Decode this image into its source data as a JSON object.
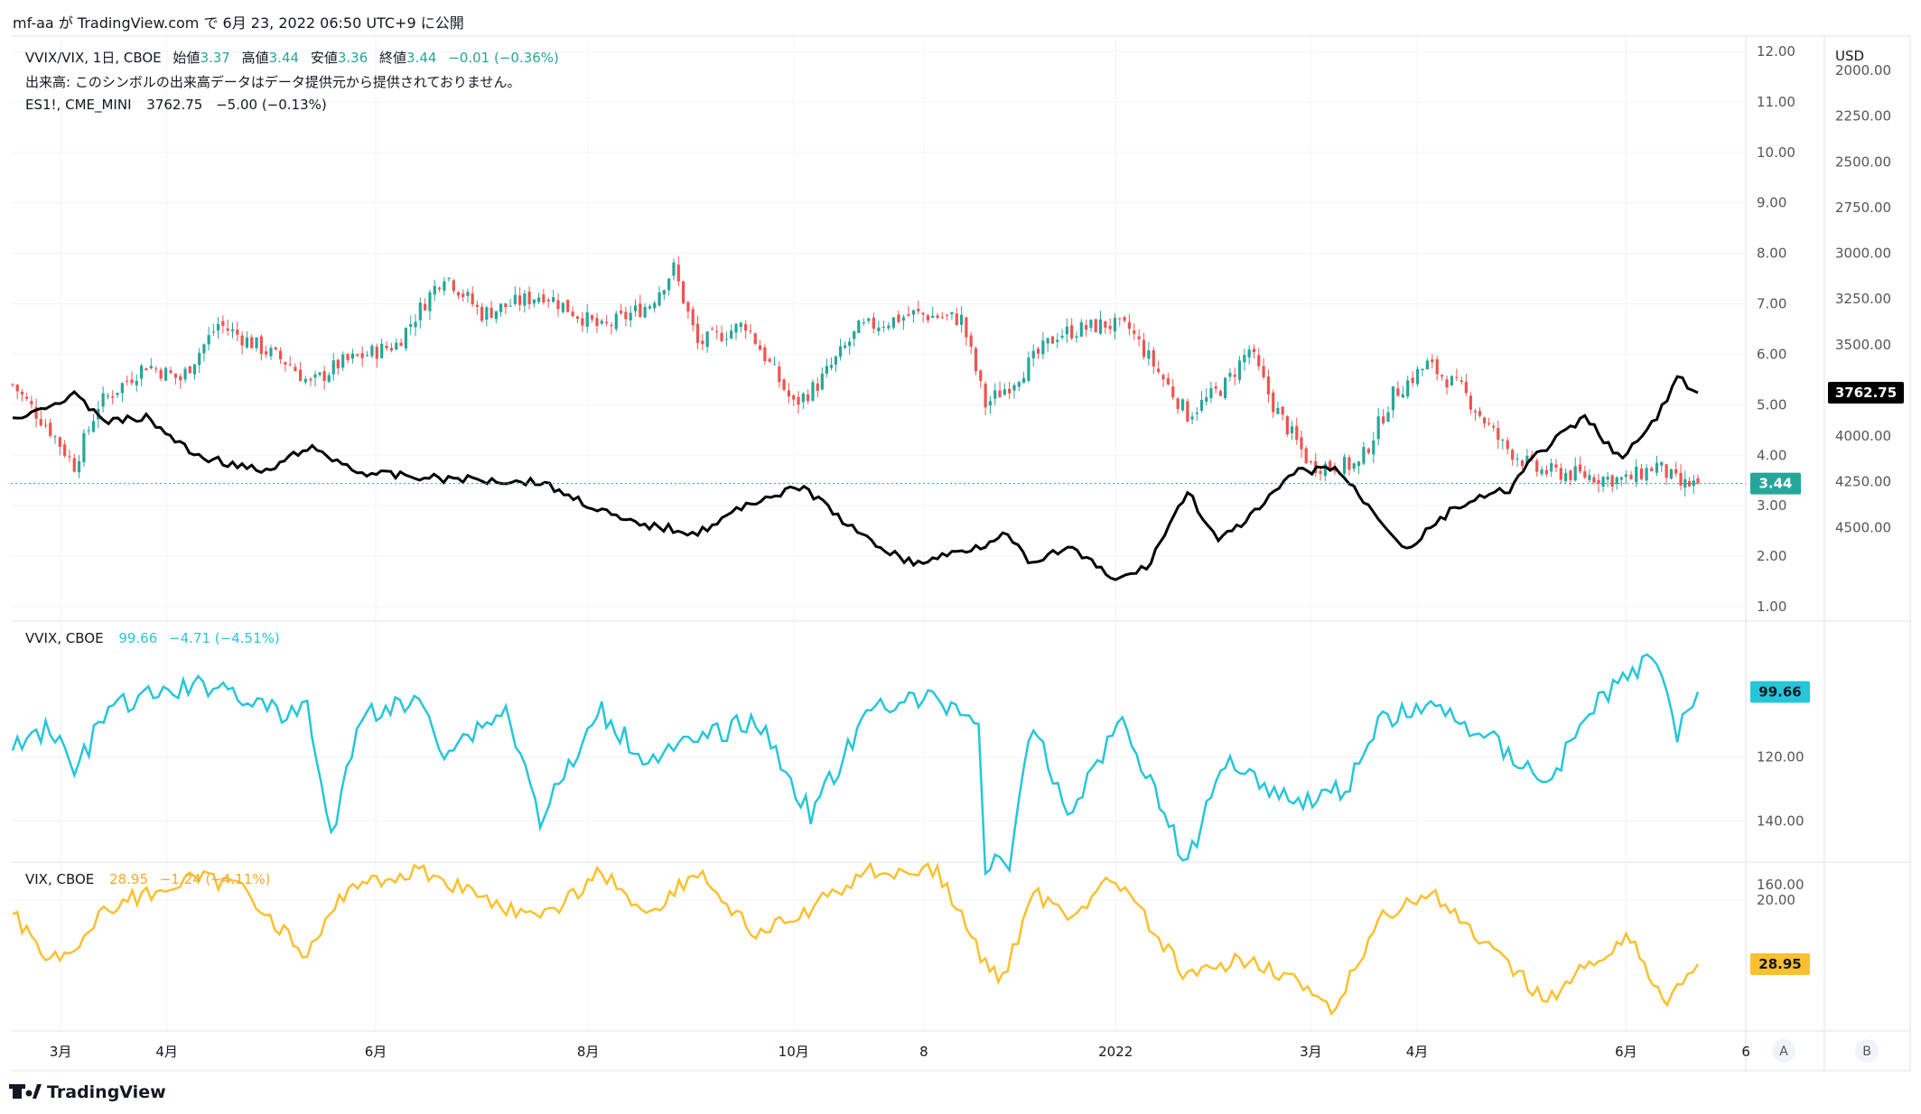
{
  "header": {
    "published": "mf-aa が TradingView.com で 6月 23, 2022 06:50 UTC+9 に公開"
  },
  "footer": {
    "brand": "TradingView"
  },
  "panes": {
    "main": {
      "symbol_line": "VVIX/VIX, 1日, CBOE",
      "o_label": "始値",
      "o": "3.37",
      "h_label": "高値",
      "h": "3.44",
      "l_label": "安値",
      "l": "3.36",
      "c_label": "終値",
      "c": "3.44",
      "change": "−0.01 (−0.36%)",
      "volume_note": "出来高: このシンボルの出来高データはデータ提供元から提供されておりません。",
      "es_line": "ES1!, CME_MINI",
      "es_value": "3762.75",
      "es_change": "−5.00 (−0.13%)",
      "right_axis_unit": "USD"
    },
    "vvix": {
      "legend_symbol": "VVIX, CBOE",
      "value": "99.66",
      "change": "−4.71 (−4.51%)"
    },
    "vix": {
      "legend_symbol": "VIX, CBOE",
      "value": "28.95",
      "change": "−1.24 (−4.11%)"
    }
  },
  "colors": {
    "up": "#26a69a",
    "down": "#ef5350",
    "vvix": "#26c6da",
    "vix": "#fbc02d",
    "es": "#000000",
    "grid": "#f0f3fa",
    "text": "#131722",
    "axis_text": "#555555"
  },
  "chart_data": [
    {
      "type": "candlestick",
      "name": "VVIX/VIX, 1日, CBOE",
      "ylim": [
        1,
        12
      ],
      "yticks": [
        "1.00",
        "2.00",
        "3.00",
        "4.00",
        "5.00",
        "6.00",
        "7.00",
        "8.00",
        "9.00",
        "10.00",
        "11.00",
        "12.00"
      ],
      "last": 3.44,
      "daily_close_path": [
        {
          "x": "2021-02-15",
          "y": 5.4
        },
        {
          "x": "2021-02-26",
          "y": 4.5
        },
        {
          "x": "2021-03-05",
          "y": 3.8
        },
        {
          "x": "2021-03-12",
          "y": 5.0
        },
        {
          "x": "2021-03-26",
          "y": 5.8
        },
        {
          "x": "2021-04-05",
          "y": 5.5
        },
        {
          "x": "2021-04-16",
          "y": 6.6
        },
        {
          "x": "2021-05-07",
          "y": 5.8
        },
        {
          "x": "2021-05-13",
          "y": 5.4
        },
        {
          "x": "2021-05-21",
          "y": 5.8
        },
        {
          "x": "2021-06-07",
          "y": 6.2
        },
        {
          "x": "2021-06-21",
          "y": 7.6
        },
        {
          "x": "2021-07-02",
          "y": 6.8
        },
        {
          "x": "2021-07-20",
          "y": 7.2
        },
        {
          "x": "2021-08-06",
          "y": 6.5
        },
        {
          "x": "2021-08-20",
          "y": 7.0
        },
        {
          "x": "2021-08-27",
          "y": 7.7
        },
        {
          "x": "2021-09-03",
          "y": 6.2
        },
        {
          "x": "2021-09-17",
          "y": 6.6
        },
        {
          "x": "2021-10-01",
          "y": 5.0
        },
        {
          "x": "2021-10-08",
          "y": 5.4
        },
        {
          "x": "2021-10-20",
          "y": 6.5
        },
        {
          "x": "2021-11-05",
          "y": 6.8
        },
        {
          "x": "2021-11-19",
          "y": 6.7
        },
        {
          "x": "2021-11-26",
          "y": 5.0
        },
        {
          "x": "2021-12-03",
          "y": 5.4
        },
        {
          "x": "2021-12-17",
          "y": 6.4
        },
        {
          "x": "2021-12-31",
          "y": 6.6
        },
        {
          "x": "2022-01-07",
          "y": 6.5
        },
        {
          "x": "2022-01-24",
          "y": 4.8
        },
        {
          "x": "2022-02-04",
          "y": 5.4
        },
        {
          "x": "2022-02-11",
          "y": 6.1
        },
        {
          "x": "2022-02-18",
          "y": 5.0
        },
        {
          "x": "2022-03-01",
          "y": 3.8
        },
        {
          "x": "2022-03-15",
          "y": 3.8
        },
        {
          "x": "2022-03-25",
          "y": 5.2
        },
        {
          "x": "2022-04-04",
          "y": 5.8
        },
        {
          "x": "2022-04-14",
          "y": 5.3
        },
        {
          "x": "2022-04-26",
          "y": 4.2
        },
        {
          "x": "2022-05-06",
          "y": 3.7
        },
        {
          "x": "2022-05-20",
          "y": 3.6
        },
        {
          "x": "2022-06-01",
          "y": 3.5
        },
        {
          "x": "2022-06-10",
          "y": 3.8
        },
        {
          "x": "2022-06-17",
          "y": 3.4
        },
        {
          "x": "2022-06-22",
          "y": 3.44
        }
      ]
    },
    {
      "type": "line",
      "name": "ES1!, CME_MINI",
      "ylim": [
        2000,
        4750
      ],
      "yticks": [
        "2000.00",
        "2250.00",
        "2500.00",
        "2750.00",
        "3000.00",
        "3250.00",
        "3500.00",
        "3750.00",
        "4000.00",
        "4250.00",
        "4500.00"
      ],
      "last": 3762.75,
      "points": [
        {
          "x": "2021-02-15",
          "y": 3900
        },
        {
          "x": "2021-02-26",
          "y": 3830
        },
        {
          "x": "2021-03-05",
          "y": 3780
        },
        {
          "x": "2021-03-15",
          "y": 3920
        },
        {
          "x": "2021-03-26",
          "y": 3900
        },
        {
          "x": "2021-04-09",
          "y": 4100
        },
        {
          "x": "2021-04-30",
          "y": 4200
        },
        {
          "x": "2021-05-12",
          "y": 4060
        },
        {
          "x": "2021-05-28",
          "y": 4200
        },
        {
          "x": "2021-06-18",
          "y": 4230
        },
        {
          "x": "2021-07-19",
          "y": 4250
        },
        {
          "x": "2021-08-13",
          "y": 4470
        },
        {
          "x": "2021-08-31",
          "y": 4520
        },
        {
          "x": "2021-09-03",
          "y": 4530
        },
        {
          "x": "2021-09-20",
          "y": 4350
        },
        {
          "x": "2021-09-30",
          "y": 4300
        },
        {
          "x": "2021-10-04",
          "y": 4280
        },
        {
          "x": "2021-10-21",
          "y": 4550
        },
        {
          "x": "2021-11-05",
          "y": 4700
        },
        {
          "x": "2021-11-26",
          "y": 4590
        },
        {
          "x": "2021-12-01",
          "y": 4520
        },
        {
          "x": "2021-12-10",
          "y": 4710
        },
        {
          "x": "2021-12-20",
          "y": 4600
        },
        {
          "x": "2022-01-03",
          "y": 4790
        },
        {
          "x": "2022-01-12",
          "y": 4720
        },
        {
          "x": "2022-01-24",
          "y": 4300
        },
        {
          "x": "2022-02-02",
          "y": 4580
        },
        {
          "x": "2022-02-14",
          "y": 4400
        },
        {
          "x": "2022-02-24",
          "y": 4200
        },
        {
          "x": "2022-03-08",
          "y": 4170
        },
        {
          "x": "2022-03-29",
          "y": 4620
        },
        {
          "x": "2022-04-12",
          "y": 4390
        },
        {
          "x": "2022-04-28",
          "y": 4290
        },
        {
          "x": "2022-05-06",
          "y": 4100
        },
        {
          "x": "2022-05-20",
          "y": 3900
        },
        {
          "x": "2022-05-31",
          "y": 4130
        },
        {
          "x": "2022-06-10",
          "y": 3900
        },
        {
          "x": "2022-06-16",
          "y": 3680
        },
        {
          "x": "2022-06-22",
          "y": 3762.75
        }
      ]
    },
    {
      "type": "line",
      "name": "VVIX, CBOE",
      "ylim": [
        80,
        160
      ],
      "yticks": [
        "120.00",
        "140.00",
        "160.00"
      ],
      "last": 99.66,
      "points": [
        {
          "x": "2021-02-15",
          "y": 118
        },
        {
          "x": "2021-02-26",
          "y": 110
        },
        {
          "x": "2021-03-05",
          "y": 125
        },
        {
          "x": "2021-03-15",
          "y": 105
        },
        {
          "x": "2021-03-31",
          "y": 100
        },
        {
          "x": "2021-04-16",
          "y": 97
        },
        {
          "x": "2021-05-06",
          "y": 108
        },
        {
          "x": "2021-05-12",
          "y": 103
        },
        {
          "x": "2021-05-19",
          "y": 146
        },
        {
          "x": "2021-05-28",
          "y": 106
        },
        {
          "x": "2021-06-15",
          "y": 103
        },
        {
          "x": "2021-06-21",
          "y": 118
        },
        {
          "x": "2021-07-09",
          "y": 105
        },
        {
          "x": "2021-07-19",
          "y": 139
        },
        {
          "x": "2021-08-06",
          "y": 106
        },
        {
          "x": "2021-08-18",
          "y": 120
        },
        {
          "x": "2021-08-27",
          "y": 118
        },
        {
          "x": "2021-09-20",
          "y": 108
        },
        {
          "x": "2021-10-06",
          "y": 138
        },
        {
          "x": "2021-10-25",
          "y": 103
        },
        {
          "x": "2021-11-12",
          "y": 102
        },
        {
          "x": "2021-11-24",
          "y": 108
        },
        {
          "x": "2021-11-26",
          "y": 155
        },
        {
          "x": "2021-12-03",
          "y": 152
        },
        {
          "x": "2021-12-10",
          "y": 110
        },
        {
          "x": "2021-12-20",
          "y": 138
        },
        {
          "x": "2022-01-05",
          "y": 108
        },
        {
          "x": "2022-01-24",
          "y": 154
        },
        {
          "x": "2022-02-04",
          "y": 120
        },
        {
          "x": "2022-02-24",
          "y": 134
        },
        {
          "x": "2022-03-11",
          "y": 130
        },
        {
          "x": "2022-03-22",
          "y": 108
        },
        {
          "x": "2022-04-05",
          "y": 104
        },
        {
          "x": "2022-04-22",
          "y": 114
        },
        {
          "x": "2022-05-09",
          "y": 128
        },
        {
          "x": "2022-05-24",
          "y": 102
        },
        {
          "x": "2022-06-10",
          "y": 88
        },
        {
          "x": "2022-06-16",
          "y": 112
        },
        {
          "x": "2022-06-22",
          "y": 99.66
        }
      ]
    },
    {
      "type": "line",
      "name": "VIX, CBOE",
      "ylim": [
        15,
        40
      ],
      "yticks": [
        "20.00"
      ],
      "last": 28.95,
      "points": [
        {
          "x": "2021-02-15",
          "y": 22
        },
        {
          "x": "2021-02-26",
          "y": 28
        },
        {
          "x": "2021-03-05",
          "y": 27
        },
        {
          "x": "2021-03-15",
          "y": 21
        },
        {
          "x": "2021-04-09",
          "y": 17
        },
        {
          "x": "2021-04-23",
          "y": 18
        },
        {
          "x": "2021-05-12",
          "y": 28
        },
        {
          "x": "2021-05-24",
          "y": 18
        },
        {
          "x": "2021-06-15",
          "y": 16
        },
        {
          "x": "2021-07-19",
          "y": 23
        },
        {
          "x": "2021-08-06",
          "y": 16
        },
        {
          "x": "2021-08-19",
          "y": 22
        },
        {
          "x": "2021-09-03",
          "y": 16
        },
        {
          "x": "2021-09-20",
          "y": 25
        },
        {
          "x": "2021-10-04",
          "y": 22
        },
        {
          "x": "2021-10-22",
          "y": 16
        },
        {
          "x": "2021-11-12",
          "y": 16
        },
        {
          "x": "2021-11-26",
          "y": 29
        },
        {
          "x": "2021-12-01",
          "y": 31
        },
        {
          "x": "2021-12-10",
          "y": 19
        },
        {
          "x": "2021-12-20",
          "y": 22
        },
        {
          "x": "2022-01-03",
          "y": 17
        },
        {
          "x": "2022-01-24",
          "y": 31
        },
        {
          "x": "2022-02-11",
          "y": 28
        },
        {
          "x": "2022-02-24",
          "y": 31
        },
        {
          "x": "2022-03-07",
          "y": 36
        },
        {
          "x": "2022-03-22",
          "y": 22
        },
        {
          "x": "2022-04-05",
          "y": 19
        },
        {
          "x": "2022-04-22",
          "y": 27
        },
        {
          "x": "2022-05-09",
          "y": 34
        },
        {
          "x": "2022-05-24",
          "y": 28
        },
        {
          "x": "2022-06-01",
          "y": 25
        },
        {
          "x": "2022-06-13",
          "y": 34
        },
        {
          "x": "2022-06-22",
          "y": 28.95
        }
      ]
    }
  ],
  "time_axis": {
    "labels": [
      {
        "date": "2021-03-01",
        "text": "3月"
      },
      {
        "date": "2021-04-01",
        "text": "4月"
      },
      {
        "date": "2021-06-01",
        "text": "6月"
      },
      {
        "date": "2021-08-02",
        "text": "8月"
      },
      {
        "date": "2021-10-01",
        "text": "10月"
      },
      {
        "date": "2021-11-08",
        "text": "8"
      },
      {
        "date": "2022-01-03",
        "text": "2022"
      },
      {
        "date": "2022-03-01",
        "text": "3月"
      },
      {
        "date": "2022-04-01",
        "text": "4月"
      },
      {
        "date": "2022-06-01",
        "text": "6月"
      },
      {
        "date": "2022-07-06",
        "text": "6"
      }
    ],
    "buttons": [
      "A",
      "B"
    ]
  }
}
